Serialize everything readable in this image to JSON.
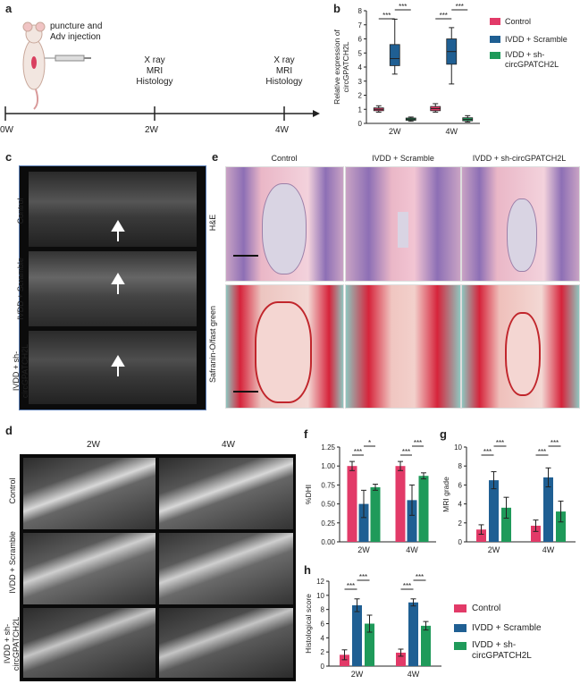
{
  "panels": {
    "a": "a",
    "b": "b",
    "c": "c",
    "d": "d",
    "e": "e",
    "f": "f",
    "g": "g",
    "h": "h"
  },
  "timeline": {
    "step1": [
      "puncture and",
      "Adv injection"
    ],
    "step2": [
      "X ray",
      "MRI",
      "Histology"
    ],
    "step3": [
      "X ray",
      "MRI",
      "Histology"
    ],
    "ticks": [
      "0W",
      "2W",
      "4W"
    ]
  },
  "legend": {
    "items": [
      {
        "name": "Control",
        "color": "#e23a68"
      },
      {
        "name": "IVDD + Scramble",
        "color": "#1f5f93"
      },
      {
        "name": "IVDD + sh-circGPATCH2L",
        "color": "#1f9a5a"
      }
    ]
  },
  "panel_c": {
    "rows": [
      "Control",
      "IVDD + Scramble",
      "IVDD + sh-circGPATCH2L"
    ]
  },
  "panel_d": {
    "cols": [
      "2W",
      "4W"
    ],
    "rows": [
      "Control",
      "IVDD + Scramble",
      "IVDD + sh-circGPATCH2L"
    ]
  },
  "panel_e": {
    "cols": [
      "Control",
      "IVDD + Scramble",
      "IVDD + sh-circGPATCH2L"
    ],
    "rows": [
      "H&E",
      "Safranin-O/fast green"
    ]
  },
  "chart_data": [
    {
      "id": "b",
      "type": "box",
      "ylabel": "Relative expression of circGPATCH2L",
      "categories": [
        "2W",
        "4W"
      ],
      "ylim": [
        0,
        8
      ],
      "yticks": [
        0,
        1,
        2,
        3,
        4,
        5,
        6,
        7,
        8
      ],
      "series": [
        {
          "name": "Control",
          "values": [
            [
              0.8,
              0.9,
              1.0,
              1.1,
              1.25
            ],
            [
              0.8,
              0.9,
              1.05,
              1.2,
              1.4
            ]
          ]
        },
        {
          "name": "IVDD + Scramble",
          "values": [
            [
              3.5,
              4.1,
              4.6,
              5.6,
              7.4
            ],
            [
              2.8,
              4.2,
              5.1,
              6.0,
              6.8
            ]
          ]
        },
        {
          "name": "IVDD + sh-circGPATCH2L",
          "values": [
            [
              0.15,
              0.22,
              0.3,
              0.38,
              0.45
            ],
            [
              0.1,
              0.18,
              0.28,
              0.4,
              0.55
            ]
          ]
        }
      ],
      "sig": [
        "***",
        "***",
        "***",
        "***"
      ]
    },
    {
      "id": "f",
      "type": "bar",
      "ylabel": "%DHI",
      "categories": [
        "2W",
        "4W"
      ],
      "ylim": [
        0,
        1.25
      ],
      "yticks": [
        "0.00",
        "0.25",
        "0.50",
        "0.75",
        "1.00",
        "1.25"
      ],
      "series": [
        {
          "name": "Control",
          "values": [
            1.0,
            1.0
          ],
          "err": [
            0.06,
            0.06
          ]
        },
        {
          "name": "IVDD + Scramble",
          "values": [
            0.5,
            0.55
          ],
          "err": [
            0.18,
            0.2
          ]
        },
        {
          "name": "IVDD + sh-circGPATCH2L",
          "values": [
            0.72,
            0.87
          ],
          "err": [
            0.04,
            0.04
          ]
        }
      ],
      "sig": [
        "***",
        "*",
        "***",
        "***"
      ]
    },
    {
      "id": "g",
      "type": "bar",
      "ylabel": "MRI grade",
      "categories": [
        "2W",
        "4W"
      ],
      "ylim": [
        0,
        10
      ],
      "yticks": [
        "0",
        "2",
        "4",
        "6",
        "8",
        "10"
      ],
      "series": [
        {
          "name": "Control",
          "values": [
            1.3,
            1.7
          ],
          "err": [
            0.5,
            0.6
          ]
        },
        {
          "name": "IVDD + Scramble",
          "values": [
            6.5,
            6.8
          ],
          "err": [
            0.9,
            1.0
          ]
        },
        {
          "name": "IVDD + sh-circGPATCH2L",
          "values": [
            3.6,
            3.2
          ],
          "err": [
            1.1,
            1.1
          ]
        }
      ],
      "sig": [
        "***",
        "***",
        "***",
        "***"
      ]
    },
    {
      "id": "h",
      "type": "bar",
      "ylabel": "Histological score",
      "categories": [
        "2W",
        "4W"
      ],
      "ylim": [
        0,
        12
      ],
      "yticks": [
        "0",
        "2",
        "4",
        "6",
        "8",
        "10",
        "12"
      ],
      "series": [
        {
          "name": "Control",
          "values": [
            1.6,
            1.9
          ],
          "err": [
            0.7,
            0.5
          ]
        },
        {
          "name": "IVDD + Scramble",
          "values": [
            8.6,
            9.0
          ],
          "err": [
            0.9,
            0.5
          ]
        },
        {
          "name": "IVDD + sh-circGPATCH2L",
          "values": [
            6.0,
            5.7
          ],
          "err": [
            1.2,
            0.6
          ]
        }
      ],
      "sig": [
        "***",
        "***",
        "***",
        "***"
      ]
    }
  ]
}
